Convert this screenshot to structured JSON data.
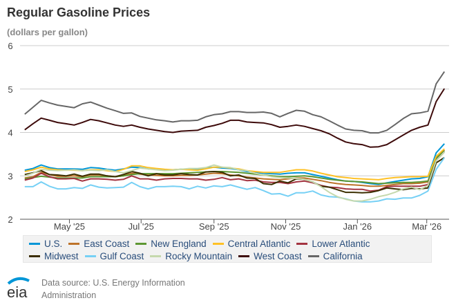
{
  "chart_data": {
    "type": "line",
    "title": "Regular Gasoline Prices",
    "subtitle": "(dollars per gallon)",
    "ylim": [
      2,
      6
    ],
    "yticks": [
      "2",
      "3",
      "4",
      "5",
      "6"
    ],
    "xticks": [
      {
        "date": "2025-05-01",
        "label": "May '25"
      },
      {
        "date": "2025-07-01",
        "label": "Jul '25"
      },
      {
        "date": "2025-09-01",
        "label": "Sep '25"
      },
      {
        "date": "2025-11-01",
        "label": "Nov '25"
      },
      {
        "date": "2026-01-01",
        "label": "Jan '26"
      },
      {
        "date": "2026-03-01",
        "label": "Mar '26"
      }
    ],
    "x_start": "2025-03-24",
    "x_step_days": 7,
    "xlim": [
      "2025-03-20",
      "2026-03-20"
    ],
    "grid": true,
    "legend_placement": "bottom",
    "series": [
      {
        "name": "U.S.",
        "color": "#0096d7",
        "values": [
          3.13,
          3.17,
          3.25,
          3.19,
          3.16,
          3.16,
          3.16,
          3.15,
          3.19,
          3.18,
          3.15,
          3.13,
          3.16,
          3.2,
          3.19,
          3.16,
          3.15,
          3.14,
          3.14,
          3.15,
          3.15,
          3.16,
          3.18,
          3.2,
          3.18,
          3.17,
          3.14,
          3.1,
          3.08,
          3.06,
          3.05,
          3.04,
          3.06,
          3.07,
          3.07,
          3.03,
          2.99,
          2.95,
          2.91,
          2.88,
          2.87,
          2.85,
          2.82,
          2.8,
          2.84,
          2.87,
          2.9,
          2.93,
          2.94,
          2.98,
          3.53,
          3.74
        ]
      },
      {
        "name": "East Coast",
        "color": "#bd732a",
        "values": [
          2.95,
          2.98,
          3.08,
          3.03,
          2.99,
          2.99,
          3.0,
          2.98,
          3.02,
          3.02,
          3.0,
          2.98,
          3.0,
          3.06,
          3.04,
          3.02,
          3.01,
          3.0,
          3.0,
          3.01,
          3.01,
          3.02,
          3.04,
          3.06,
          3.05,
          3.02,
          3.0,
          2.97,
          2.95,
          2.93,
          2.92,
          2.91,
          2.93,
          2.95,
          2.95,
          2.92,
          2.89,
          2.85,
          2.82,
          2.8,
          2.79,
          2.78,
          2.76,
          2.76,
          2.78,
          2.8,
          2.82,
          2.82,
          2.83,
          2.86,
          3.42,
          3.6
        ]
      },
      {
        "name": "New England",
        "color": "#5d9732",
        "values": [
          2.93,
          2.96,
          2.99,
          2.97,
          2.95,
          2.95,
          2.95,
          2.95,
          2.98,
          2.98,
          2.98,
          2.98,
          3.0,
          3.03,
          3.05,
          3.05,
          3.05,
          3.05,
          3.05,
          3.06,
          3.07,
          3.08,
          3.09,
          3.1,
          3.1,
          3.09,
          3.08,
          3.06,
          3.04,
          3.02,
          3.0,
          2.98,
          2.98,
          2.99,
          3.0,
          2.98,
          2.95,
          2.92,
          2.9,
          2.88,
          2.87,
          2.86,
          2.84,
          2.82,
          2.83,
          2.84,
          2.85,
          2.85,
          2.86,
          2.88,
          3.4,
          3.58
        ]
      },
      {
        "name": "Central Atlantic",
        "color": "#ffc125",
        "values": [
          3.1,
          3.14,
          3.2,
          3.16,
          3.14,
          3.13,
          3.13,
          3.12,
          3.14,
          3.14,
          3.12,
          3.1,
          3.15,
          3.23,
          3.23,
          3.19,
          3.17,
          3.15,
          3.14,
          3.15,
          3.14,
          3.13,
          3.16,
          3.2,
          3.2,
          3.18,
          3.16,
          3.12,
          3.1,
          3.08,
          3.08,
          3.08,
          3.11,
          3.14,
          3.14,
          3.11,
          3.06,
          3.02,
          2.98,
          2.96,
          2.94,
          2.93,
          2.92,
          2.91,
          2.94,
          2.96,
          2.97,
          2.98,
          2.98,
          2.99,
          3.45,
          3.62
        ]
      },
      {
        "name": "Lower Atlantic",
        "color": "#a33340",
        "values": [
          2.9,
          2.95,
          3.06,
          2.98,
          2.93,
          2.93,
          2.94,
          2.88,
          2.93,
          2.93,
          2.92,
          2.9,
          2.92,
          3.0,
          2.93,
          2.93,
          2.9,
          2.93,
          2.94,
          2.94,
          2.93,
          2.93,
          2.9,
          2.92,
          2.96,
          2.91,
          2.93,
          2.89,
          2.9,
          2.86,
          2.85,
          2.85,
          2.82,
          2.86,
          2.88,
          2.84,
          2.78,
          2.74,
          2.73,
          2.7,
          2.69,
          2.69,
          2.65,
          2.67,
          2.75,
          2.76,
          2.76,
          2.76,
          2.76,
          2.8,
          3.35,
          3.55
        ]
      },
      {
        "name": "Midwest",
        "color": "#3b2e00",
        "values": [
          3.03,
          3.07,
          3.12,
          3.03,
          3.02,
          3.0,
          3.04,
          2.99,
          3.04,
          3.04,
          3.0,
          2.98,
          3.03,
          3.1,
          3.06,
          3.0,
          3.05,
          3.02,
          3.02,
          3.05,
          3.03,
          3.02,
          3.09,
          3.1,
          3.08,
          3.0,
          3.02,
          2.95,
          2.94,
          2.82,
          2.8,
          2.88,
          2.84,
          2.93,
          2.92,
          2.86,
          2.76,
          2.74,
          2.68,
          2.62,
          2.62,
          2.61,
          2.62,
          2.66,
          2.72,
          2.7,
          2.68,
          2.71,
          2.7,
          2.72,
          3.3,
          3.42
        ]
      },
      {
        "name": "Gulf Coast",
        "color": "#76d0f5",
        "values": [
          2.75,
          2.75,
          2.86,
          2.76,
          2.7,
          2.7,
          2.73,
          2.71,
          2.79,
          2.74,
          2.72,
          2.73,
          2.74,
          2.85,
          2.75,
          2.7,
          2.75,
          2.75,
          2.76,
          2.75,
          2.7,
          2.76,
          2.72,
          2.77,
          2.75,
          2.79,
          2.74,
          2.69,
          2.73,
          2.66,
          2.58,
          2.59,
          2.53,
          2.61,
          2.61,
          2.65,
          2.56,
          2.52,
          2.51,
          2.47,
          2.42,
          2.4,
          2.4,
          2.42,
          2.47,
          2.46,
          2.49,
          2.49,
          2.55,
          2.65,
          3.15,
          3.42
        ]
      },
      {
        "name": "Rocky Mountain",
        "color": "#c5d9ad",
        "values": [
          3.0,
          3.06,
          3.15,
          3.13,
          3.12,
          3.13,
          3.14,
          3.12,
          3.13,
          3.12,
          3.14,
          3.1,
          3.07,
          3.12,
          3.18,
          3.16,
          3.14,
          3.12,
          3.13,
          3.15,
          3.17,
          3.17,
          3.19,
          3.25,
          3.2,
          3.19,
          3.14,
          3.12,
          3.06,
          3.02,
          2.98,
          2.96,
          2.95,
          2.94,
          2.92,
          2.86,
          2.75,
          2.62,
          2.52,
          2.46,
          2.42,
          2.42,
          2.46,
          2.52,
          2.56,
          2.62,
          2.7,
          2.74,
          2.68,
          2.78,
          3.35,
          3.55
        ]
      },
      {
        "name": "West Coast",
        "color": "#3d0a0a",
        "values": [
          4.06,
          4.2,
          4.33,
          4.28,
          4.23,
          4.2,
          4.17,
          4.23,
          4.3,
          4.27,
          4.22,
          4.17,
          4.14,
          4.17,
          4.12,
          4.08,
          4.05,
          4.02,
          4.0,
          4.03,
          4.04,
          4.05,
          4.12,
          4.16,
          4.21,
          4.28,
          4.28,
          4.24,
          4.23,
          4.22,
          4.18,
          4.12,
          4.14,
          4.17,
          4.14,
          4.09,
          4.04,
          3.97,
          3.87,
          3.78,
          3.74,
          3.72,
          3.66,
          3.67,
          3.72,
          3.83,
          3.94,
          4.05,
          4.12,
          4.17,
          4.71,
          5.01
        ]
      },
      {
        "name": "California",
        "color": "#666666",
        "values": [
          4.42,
          4.58,
          4.74,
          4.68,
          4.63,
          4.6,
          4.57,
          4.66,
          4.7,
          4.63,
          4.56,
          4.5,
          4.44,
          4.45,
          4.37,
          4.33,
          4.29,
          4.27,
          4.24,
          4.27,
          4.27,
          4.28,
          4.36,
          4.41,
          4.43,
          4.48,
          4.48,
          4.46,
          4.46,
          4.47,
          4.44,
          4.36,
          4.44,
          4.51,
          4.49,
          4.41,
          4.36,
          4.27,
          4.17,
          4.08,
          4.05,
          4.04,
          3.99,
          3.99,
          4.05,
          4.18,
          4.32,
          4.43,
          4.45,
          4.49,
          5.12,
          5.4
        ]
      }
    ]
  },
  "footer": {
    "source_line1": "Data source: U.S. Energy Information",
    "source_line2": "Administration",
    "logo_text": "eia",
    "logo_color": "#0096d7"
  }
}
